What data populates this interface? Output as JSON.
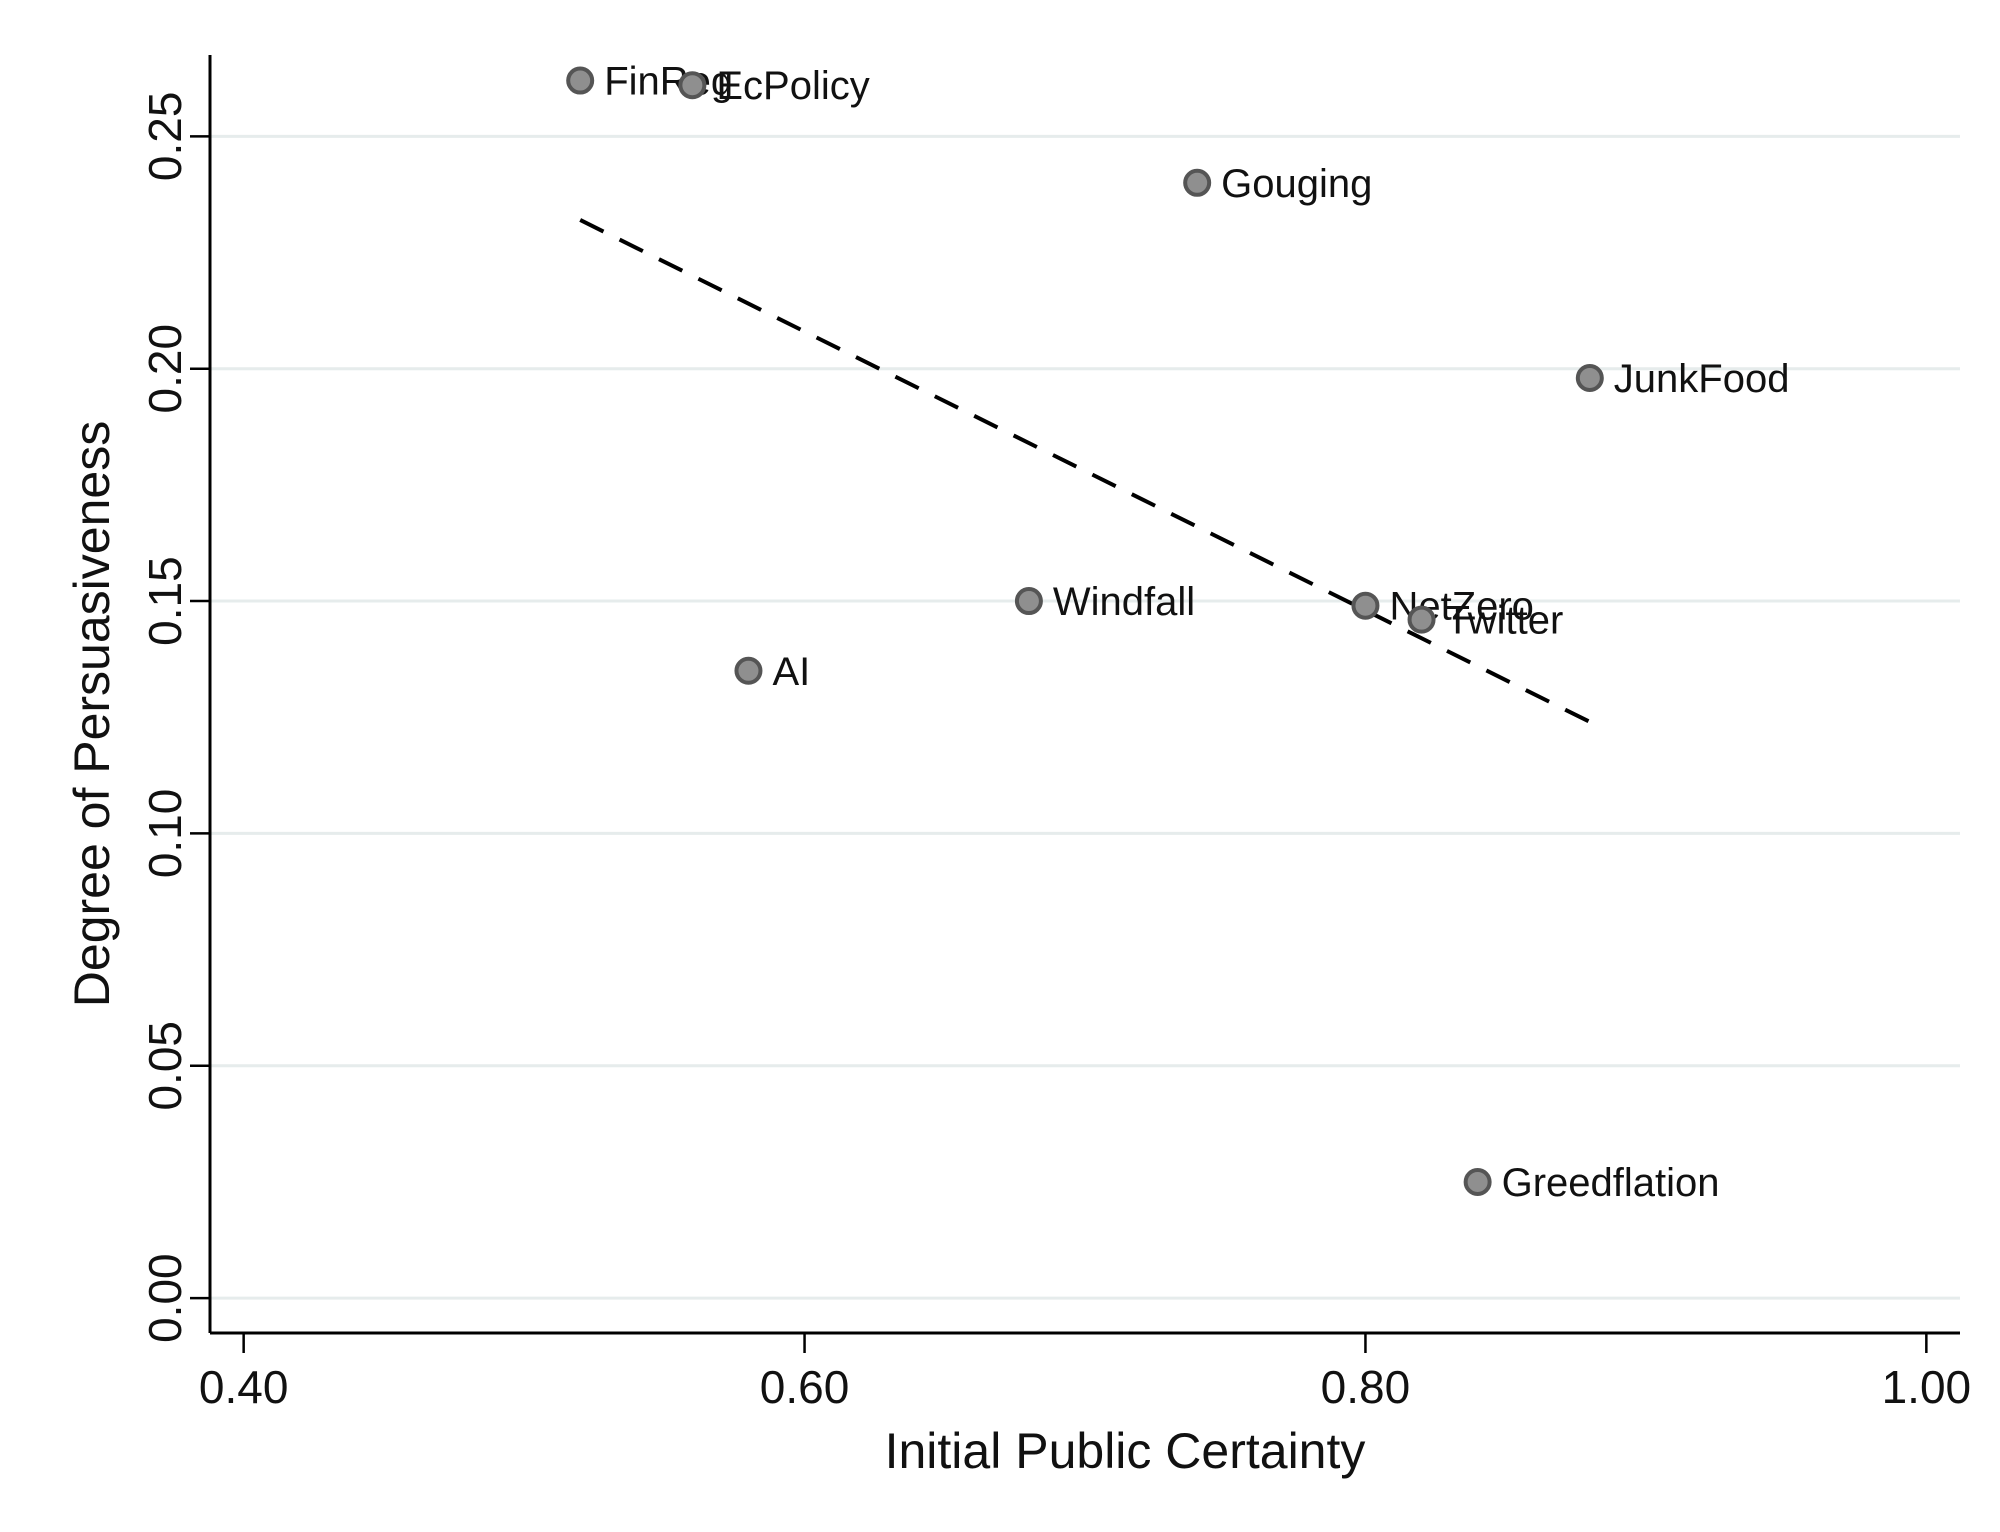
{
  "chart_data": {
    "type": "scatter",
    "title": "",
    "xlabel": "Initial Public Certainty",
    "ylabel": "Degree of Persuasiveness",
    "xlim": [
      0.388,
      1.012
    ],
    "ylim": [
      -0.0075,
      0.2675
    ],
    "x_ticks": [
      0.4,
      0.6,
      0.8,
      1.0
    ],
    "x_tick_labels": [
      "0.40",
      "0.60",
      "0.80",
      "1.00"
    ],
    "y_ticks": [
      0.0,
      0.05,
      0.1,
      0.15,
      0.2,
      0.25
    ],
    "y_tick_labels": [
      "0.00",
      "0.05",
      "0.10",
      "0.15",
      "0.20",
      "0.25"
    ],
    "grid": "horizontal",
    "legend": "none",
    "points": [
      {
        "label": "FinReg",
        "x": 0.52,
        "y": 0.262
      },
      {
        "label": "EcPolicy",
        "x": 0.56,
        "y": 0.261
      },
      {
        "label": "Gouging",
        "x": 0.74,
        "y": 0.24
      },
      {
        "label": "JunkFood",
        "x": 0.88,
        "y": 0.198
      },
      {
        "label": "Windfall",
        "x": 0.68,
        "y": 0.15
      },
      {
        "label": "NetZero",
        "x": 0.8,
        "y": 0.149
      },
      {
        "label": "Twitter",
        "x": 0.82,
        "y": 0.146
      },
      {
        "label": "AI",
        "x": 0.58,
        "y": 0.135
      },
      {
        "label": "Greedflation",
        "x": 0.84,
        "y": 0.025
      }
    ],
    "fit_line": {
      "style": "dashed",
      "x": [
        0.52,
        0.88
      ],
      "y": [
        0.232,
        0.124
      ]
    },
    "colors": {
      "marker_fill": "#8f8f8f",
      "marker_edge": "#555555",
      "grid": "#e6ecec",
      "line": "#000000"
    }
  }
}
